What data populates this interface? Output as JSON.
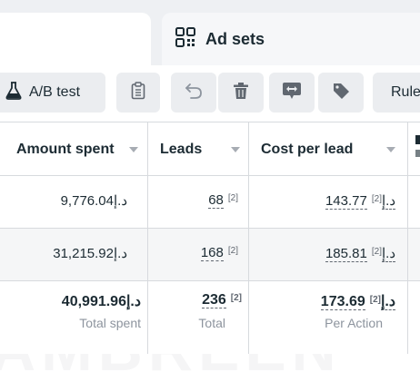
{
  "tabs": {
    "adsets_label": "Ad sets"
  },
  "toolbar": {
    "ab_test_label": "A/B test",
    "rules_label": "Rule"
  },
  "table": {
    "headers": [
      "Amount spent",
      "Leads",
      "Cost per lead"
    ],
    "rows": [
      {
        "amount": "9,776.04د.إ",
        "leads": "68",
        "leads_ref": "[2]",
        "cost": "143.77د.إ",
        "cost_ref": "[2]"
      },
      {
        "amount": "31,215.92د.إ",
        "leads": "168",
        "leads_ref": "[2]",
        "cost": "185.81د.إ",
        "cost_ref": "[2]"
      }
    ],
    "totals": {
      "amount": "40,991.96د.إ",
      "amount_caption": "Total spent",
      "leads": "236",
      "leads_ref": "[2]",
      "leads_caption": "Total",
      "cost": "173.69د.إ",
      "cost_ref": "[2]",
      "cost_caption": "Per Action"
    }
  },
  "watermark": "AMBREEN"
}
